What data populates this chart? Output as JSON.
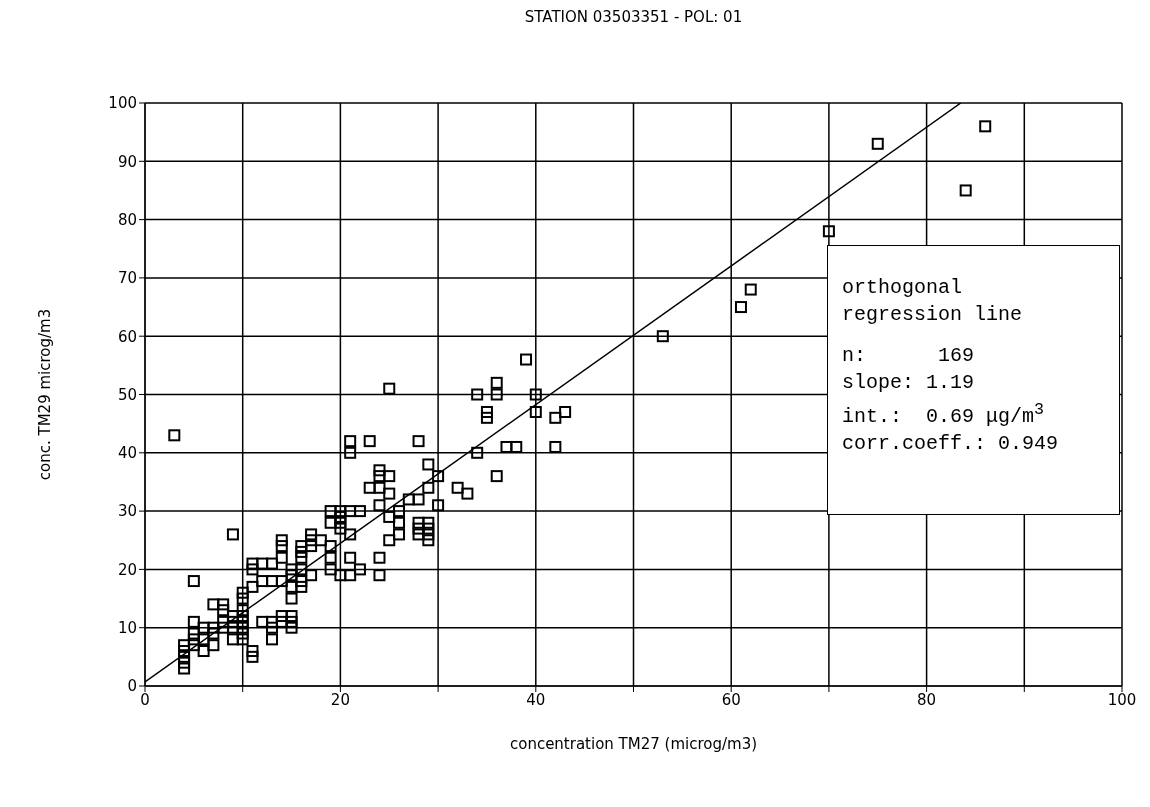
{
  "chart_data": {
    "type": "scatter",
    "title": "STATION 03503351 - POL: 01",
    "xlabel": "concentration TM27  (microg/m3)",
    "ylabel": "conc. TM29  microg/m3",
    "xlim": [
      0,
      100
    ],
    "ylim": [
      0,
      100
    ],
    "xticks": [
      0,
      {
        "value": 10,
        "label": null
      },
      20,
      {
        "value": 30,
        "label": null
      },
      40,
      {
        "value": 50,
        "label": null
      },
      60,
      {
        "value": 70,
        "label": null
      },
      80,
      {
        "value": 90,
        "label": null
      },
      100
    ],
    "yticks": [
      0,
      10,
      20,
      30,
      40,
      50,
      60,
      70,
      80,
      90,
      100
    ],
    "grid": true,
    "annotations": [
      "orthogonal regression line",
      "n:      169",
      "slope: 1.19",
      "int.:  0.69 μg/m$^{3}$",
      "corr.coeff.: 0.949"
    ],
    "series": [
      {
        "color": "#000000",
        "marker": "square",
        "x": [
          3,
          53,
          61,
          62,
          70,
          75,
          84,
          86,
          39,
          25,
          36,
          36,
          34,
          40,
          35,
          35,
          40,
          42,
          43,
          34,
          37,
          38,
          42,
          36,
          30,
          30,
          32,
          33,
          29,
          29,
          28,
          23,
          21,
          21,
          24,
          24,
          25,
          24,
          23,
          24,
          25,
          25,
          25,
          26,
          26,
          26,
          27,
          28,
          28,
          28,
          28,
          29,
          29,
          29,
          29,
          24,
          24,
          21,
          21,
          22,
          21,
          20,
          20,
          19,
          21,
          22,
          20,
          20,
          19,
          20,
          19,
          19,
          19,
          18,
          17,
          17,
          17,
          17,
          16,
          16,
          16,
          16,
          16,
          16,
          15,
          15,
          15,
          15,
          15,
          15,
          15,
          14,
          14,
          14,
          14,
          14,
          14,
          13,
          13,
          13,
          13,
          13,
          12,
          12,
          12,
          11,
          11,
          11,
          11,
          11,
          10,
          10,
          10,
          10,
          10,
          10,
          10,
          10,
          9,
          9,
          9,
          9,
          9,
          8,
          8,
          8,
          8,
          7,
          7,
          7,
          7,
          6,
          6,
          6,
          5,
          5,
          5,
          5,
          5,
          4,
          4,
          4,
          4,
          4
        ],
        "values": [
          43,
          60,
          65,
          68,
          78,
          93,
          85,
          96,
          56,
          51,
          52,
          50,
          50,
          50,
          47,
          46,
          47,
          46,
          47,
          40,
          41,
          41,
          41,
          36,
          36,
          31,
          34,
          33,
          38,
          34,
          42,
          42,
          42,
          40,
          37,
          36,
          36,
          34,
          34,
          31,
          33,
          29,
          25,
          30,
          28,
          26,
          32,
          32,
          28,
          27,
          26,
          28,
          27,
          26,
          25,
          22,
          19,
          26,
          22,
          20,
          19,
          19,
          30,
          30,
          30,
          30,
          29,
          28,
          28,
          27,
          24,
          22,
          20,
          25,
          26,
          25,
          24,
          19,
          24,
          23,
          22,
          20,
          18,
          17,
          20,
          19,
          17,
          15,
          12,
          11,
          10,
          25,
          24,
          22,
          18,
          12,
          11,
          21,
          18,
          11,
          10,
          8,
          21,
          18,
          11,
          21,
          20,
          17,
          6,
          5,
          16,
          15,
          13,
          12,
          11,
          10,
          9,
          8,
          26,
          12,
          11,
          10,
          8,
          14,
          13,
          11,
          10,
          14,
          10,
          9,
          7,
          10,
          8,
          6,
          18,
          11,
          9,
          8,
          7,
          7,
          6,
          5,
          4,
          3
        ]
      },
      {
        "type": "line",
        "color": "#000000",
        "marker": "none",
        "line_style": "solid",
        "x": [
          0,
          83.5
        ],
        "values": [
          0.7,
          100
        ]
      }
    ]
  }
}
